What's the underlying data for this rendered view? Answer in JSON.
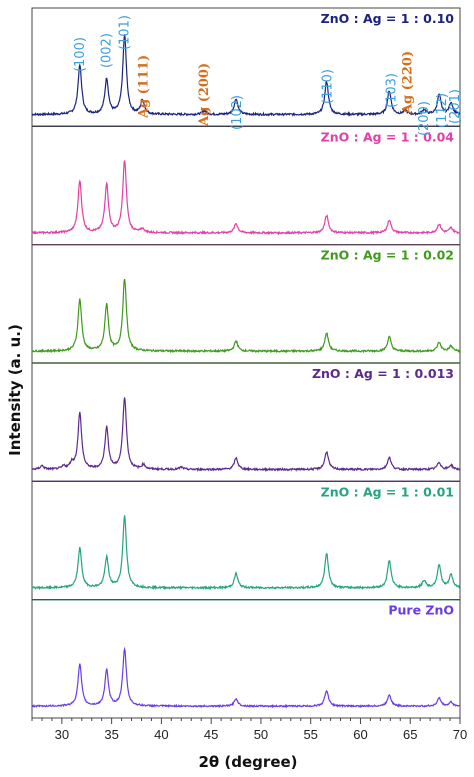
{
  "chart_data": {
    "type": "line",
    "xlabel": "2θ (degree)",
    "ylabel": "Intensity (a. u.)",
    "xlim": [
      27,
      70
    ],
    "x_ticks": [
      30,
      35,
      40,
      45,
      50,
      55,
      60,
      65,
      70
    ],
    "grid": false,
    "legend": "per-panel labels, top-right",
    "series": [
      {
        "name": "ZnO : Ag = 1 : 0.10",
        "color": "#1a237e",
        "peaks": [
          [
            31.8,
            0.62
          ],
          [
            34.5,
            0.45
          ],
          [
            36.3,
            1.0
          ],
          [
            38.1,
            0.18
          ],
          [
            44.3,
            0.05
          ],
          [
            47.5,
            0.2
          ],
          [
            56.6,
            0.42
          ],
          [
            62.9,
            0.3
          ],
          [
            64.5,
            0.05
          ],
          [
            66.4,
            0.06
          ],
          [
            67.9,
            0.25
          ],
          [
            69.1,
            0.15
          ]
        ]
      },
      {
        "name": "ZnO : Ag = 1 : 0.04",
        "color": "#e040a8",
        "peaks": [
          [
            31.8,
            0.72
          ],
          [
            34.5,
            0.68
          ],
          [
            36.3,
            1.0
          ],
          [
            38.1,
            0.05
          ],
          [
            47.5,
            0.13
          ],
          [
            56.6,
            0.24
          ],
          [
            62.9,
            0.18
          ],
          [
            67.9,
            0.12
          ],
          [
            69.1,
            0.07
          ]
        ]
      },
      {
        "name": "ZnO : Ag = 1 : 0.02",
        "color": "#3f9a1e",
        "peaks": [
          [
            31.8,
            0.72
          ],
          [
            34.5,
            0.65
          ],
          [
            36.3,
            1.0
          ],
          [
            47.5,
            0.14
          ],
          [
            56.6,
            0.25
          ],
          [
            62.9,
            0.2
          ],
          [
            67.9,
            0.12
          ],
          [
            69.1,
            0.07
          ]
        ]
      },
      {
        "name": "ZnO : Ag = 1 : 0.013",
        "color": "#5c2a8e",
        "peaks": [
          [
            28.0,
            0.05
          ],
          [
            30.2,
            0.04
          ],
          [
            31.0,
            0.08
          ],
          [
            31.8,
            0.78
          ],
          [
            34.5,
            0.58
          ],
          [
            36.3,
            1.0
          ],
          [
            38.2,
            0.06
          ],
          [
            42.0,
            0.03
          ],
          [
            47.5,
            0.16
          ],
          [
            56.6,
            0.25
          ],
          [
            62.9,
            0.17
          ],
          [
            67.9,
            0.1
          ],
          [
            69.1,
            0.06
          ]
        ]
      },
      {
        "name": "ZnO : Ag = 1 : 0.01",
        "color": "#25a47e",
        "peaks": [
          [
            31.8,
            0.55
          ],
          [
            34.5,
            0.42
          ],
          [
            36.3,
            1.0
          ],
          [
            47.5,
            0.2
          ],
          [
            56.6,
            0.48
          ],
          [
            62.9,
            0.38
          ],
          [
            66.4,
            0.1
          ],
          [
            67.9,
            0.32
          ],
          [
            69.1,
            0.18
          ]
        ]
      },
      {
        "name": "Pure ZnO",
        "color": "#6a3ce6",
        "peaks": [
          [
            31.8,
            0.72
          ],
          [
            34.5,
            0.62
          ],
          [
            36.3,
            0.98
          ],
          [
            47.5,
            0.13
          ],
          [
            56.6,
            0.27
          ],
          [
            62.9,
            0.2
          ],
          [
            67.9,
            0.14
          ],
          [
            69.1,
            0.07
          ]
        ]
      }
    ],
    "annotations": [
      {
        "text": "(100)",
        "x": 31.8,
        "kind": "ZnO"
      },
      {
        "text": "(002)",
        "x": 34.5,
        "kind": "ZnO"
      },
      {
        "text": "(101)",
        "x": 36.3,
        "kind": "ZnO"
      },
      {
        "text": "Ag (111)",
        "x": 38.1,
        "kind": "Ag"
      },
      {
        "text": "Ag (200)",
        "x": 44.3,
        "kind": "Ag"
      },
      {
        "text": "(102)",
        "x": 47.5,
        "kind": "ZnO"
      },
      {
        "text": "(110)",
        "x": 56.6,
        "kind": "ZnO"
      },
      {
        "text": "(103)",
        "x": 62.9,
        "kind": "ZnO"
      },
      {
        "text": "Ag (220)",
        "x": 64.5,
        "kind": "Ag"
      },
      {
        "text": "(200)",
        "x": 66.4,
        "kind": "ZnO"
      },
      {
        "text": "(112)",
        "x": 67.9,
        "kind": "ZnO"
      },
      {
        "text": "(201)",
        "x": 69.1,
        "kind": "ZnO"
      }
    ]
  }
}
